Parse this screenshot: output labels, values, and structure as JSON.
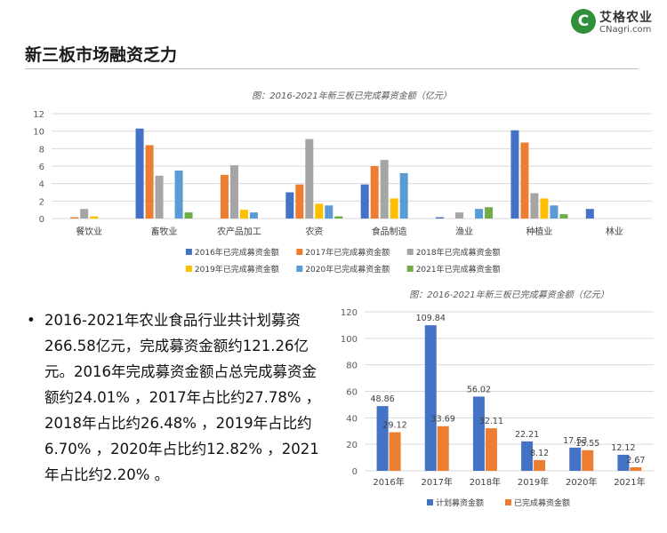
{
  "header": {
    "title": "新三板市场融资乏力",
    "logo": {
      "mark": "C",
      "name": "艾格农业",
      "url": "CNagri.com"
    }
  },
  "body_text": {
    "bullet": "•",
    "text": "2016-2021年农业食品行业共计划募资266.58亿元，完成募资金额约121.26亿元。2016年完成募资金额占总完成募资金额约24.01% ，2017年占比约27.78% ，2018年占比约26.48% ，2019年占比约6.70% ，2020年占比约12.82% ，2021年占比约2.20% 。"
  },
  "chart_data": [
    {
      "type": "bar",
      "title": "图：2016-2021年新三板已完成募资金额（亿元）",
      "categories": [
        "餐饮业",
        "畜牧业",
        "农产品加工",
        "农资",
        "食品制造",
        "渔业",
        "种植业",
        "林业"
      ],
      "series": [
        {
          "name": "2016年已完成募资金额",
          "color": "#4472c4",
          "values": [
            0,
            10.3,
            0,
            3.0,
            3.9,
            0.15,
            10.1,
            1.1
          ]
        },
        {
          "name": "2017年已完成募资金额",
          "color": "#ed7d31",
          "values": [
            0.15,
            8.4,
            5.0,
            3.9,
            6.0,
            0,
            8.7,
            0
          ]
        },
        {
          "name": "2018年已完成募资金额",
          "color": "#a5a5a5",
          "values": [
            1.1,
            4.9,
            6.1,
            9.1,
            6.7,
            0.7,
            2.9,
            0
          ]
        },
        {
          "name": "2019年已完成募资金额",
          "color": "#ffc000",
          "values": [
            0.25,
            0,
            1.0,
            1.7,
            2.3,
            0,
            2.3,
            0
          ]
        },
        {
          "name": "2020年已完成募资金额",
          "color": "#5b9bd5",
          "values": [
            0,
            5.5,
            0.7,
            1.5,
            5.2,
            1.1,
            1.5,
            0
          ]
        },
        {
          "name": "2021年已完成募资金额",
          "color": "#70ad47",
          "values": [
            0,
            0.7,
            0,
            0.25,
            0,
            1.3,
            0.5,
            0
          ]
        }
      ],
      "ylim": [
        0,
        12
      ],
      "yticks": [
        0,
        2,
        4,
        6,
        8,
        10,
        12
      ],
      "grid": true,
      "legend_position": "bottom"
    },
    {
      "type": "bar",
      "title": "图：2016-2021年新三板已完成募资金额（亿元）",
      "categories": [
        "2016年",
        "2017年",
        "2018年",
        "2019年",
        "2020年",
        "2021年"
      ],
      "series": [
        {
          "name": "计划募资金额",
          "color": "#4472c4",
          "values": [
            48.86,
            109.84,
            56.02,
            22.21,
            17.53,
            12.12
          ],
          "labels": [
            "48.86",
            "109.84",
            "56.02",
            "22.21",
            "17.53",
            "12.12"
          ]
        },
        {
          "name": "已完成募资金额",
          "color": "#ed7d31",
          "values": [
            29.12,
            33.69,
            32.11,
            8.12,
            15.55,
            2.67
          ],
          "labels": [
            "29.12",
            "33.69",
            "32.11",
            "8.12",
            "15.55",
            "2.67"
          ]
        }
      ],
      "ylim": [
        0,
        120
      ],
      "yticks": [
        0,
        20,
        40,
        60,
        80,
        100,
        120
      ],
      "grid": true,
      "legend_position": "bottom"
    }
  ]
}
